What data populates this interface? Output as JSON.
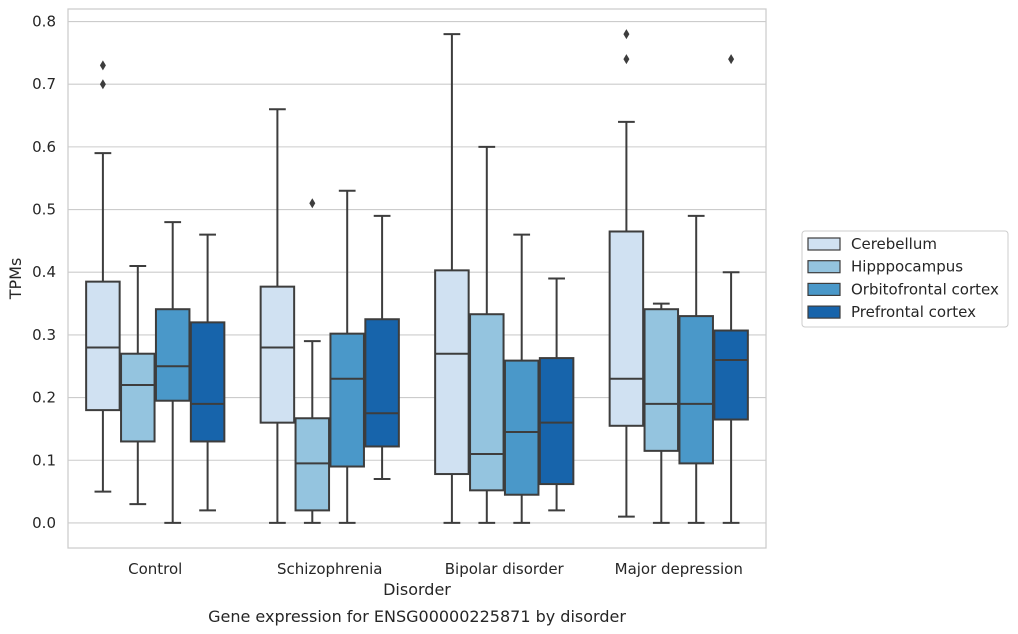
{
  "chart_data": {
    "type": "box",
    "title": "Gene expression for ENSG00000225871 by disorder",
    "xlabel": "Disorder",
    "ylabel": "TPMs",
    "ylim": [
      -0.04,
      0.82
    ],
    "yticks": [
      0.0,
      0.1,
      0.2,
      0.3,
      0.4,
      0.5,
      0.6,
      0.7,
      0.8
    ],
    "ytick_labels": [
      "0.0",
      "0.1",
      "0.2",
      "0.3",
      "0.4",
      "0.5",
      "0.6",
      "0.7",
      "0.8"
    ],
    "grid": "horizontal",
    "legend_position": "right",
    "categories": [
      "Control",
      "Schizophrenia",
      "Bipolar disorder",
      "Major depression"
    ],
    "series": [
      {
        "name": "Cerebellum",
        "color": "#d0e1f2",
        "boxes": [
          {
            "whislo": 0.05,
            "q1": 0.18,
            "med": 0.28,
            "q3": 0.385,
            "whishi": 0.59,
            "fliers": [
              0.7,
              0.73
            ]
          },
          {
            "whislo": 0.0,
            "q1": 0.16,
            "med": 0.28,
            "q3": 0.377,
            "whishi": 0.66,
            "fliers": []
          },
          {
            "whislo": 0.0,
            "q1": 0.078,
            "med": 0.27,
            "q3": 0.403,
            "whishi": 0.78,
            "fliers": []
          },
          {
            "whislo": 0.01,
            "q1": 0.155,
            "med": 0.23,
            "q3": 0.465,
            "whishi": 0.64,
            "fliers": [
              0.74,
              0.78
            ]
          }
        ]
      },
      {
        "name": "Hipppocampus",
        "color": "#94c4df",
        "boxes": [
          {
            "whislo": 0.03,
            "q1": 0.13,
            "med": 0.22,
            "q3": 0.27,
            "whishi": 0.41,
            "fliers": []
          },
          {
            "whislo": 0.0,
            "q1": 0.02,
            "med": 0.095,
            "q3": 0.167,
            "whishi": 0.29,
            "fliers": [
              0.51
            ]
          },
          {
            "whislo": 0.0,
            "q1": 0.052,
            "med": 0.11,
            "q3": 0.333,
            "whishi": 0.6,
            "fliers": []
          },
          {
            "whislo": 0.0,
            "q1": 0.115,
            "med": 0.19,
            "q3": 0.341,
            "whishi": 0.35,
            "fliers": []
          }
        ]
      },
      {
        "name": "Orbitofrontal cortex",
        "color": "#4a98c9",
        "boxes": [
          {
            "whislo": 0.0,
            "q1": 0.195,
            "med": 0.25,
            "q3": 0.341,
            "whishi": 0.48,
            "fliers": []
          },
          {
            "whislo": 0.0,
            "q1": 0.09,
            "med": 0.23,
            "q3": 0.302,
            "whishi": 0.53,
            "fliers": []
          },
          {
            "whislo": 0.0,
            "q1": 0.045,
            "med": 0.145,
            "q3": 0.259,
            "whishi": 0.46,
            "fliers": []
          },
          {
            "whislo": 0.0,
            "q1": 0.095,
            "med": 0.19,
            "q3": 0.33,
            "whishi": 0.49,
            "fliers": []
          }
        ]
      },
      {
        "name": "Prefrontal cortex",
        "color": "#1764ab",
        "boxes": [
          {
            "whislo": 0.02,
            "q1": 0.13,
            "med": 0.19,
            "q3": 0.32,
            "whishi": 0.46,
            "fliers": []
          },
          {
            "whislo": 0.07,
            "q1": 0.122,
            "med": 0.175,
            "q3": 0.325,
            "whishi": 0.49,
            "fliers": []
          },
          {
            "whislo": 0.02,
            "q1": 0.062,
            "med": 0.16,
            "q3": 0.263,
            "whishi": 0.39,
            "fliers": []
          },
          {
            "whislo": 0.0,
            "q1": 0.165,
            "med": 0.26,
            "q3": 0.307,
            "whishi": 0.4,
            "fliers": [
              0.74
            ]
          }
        ]
      }
    ]
  }
}
